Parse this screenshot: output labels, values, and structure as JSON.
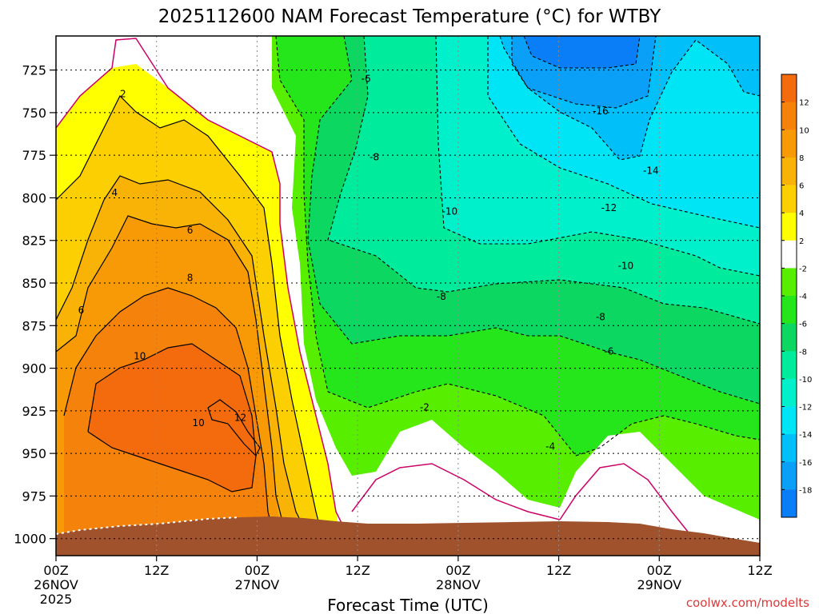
{
  "chart_data": {
    "type": "heatmap",
    "title": "2025112600 NAM Forecast Temperature (°C) for WTBY",
    "xlabel": "Forecast Time (UTC)",
    "ylabel": "",
    "x_ticks": [
      {
        "hour": 0,
        "line1": "00Z",
        "line2": "26NOV",
        "line3": "2025"
      },
      {
        "hour": 12,
        "line1": "12Z",
        "line2": "",
        "line3": ""
      },
      {
        "hour": 24,
        "line1": "00Z",
        "line2": "27NOV",
        "line3": ""
      },
      {
        "hour": 36,
        "line1": "12Z",
        "line2": "",
        "line3": ""
      },
      {
        "hour": 48,
        "line1": "00Z",
        "line2": "28NOV",
        "line3": ""
      },
      {
        "hour": 60,
        "line1": "12Z",
        "line2": "",
        "line3": ""
      },
      {
        "hour": 72,
        "line1": "00Z",
        "line2": "29NOV",
        "line3": ""
      },
      {
        "hour": 84,
        "line1": "12Z",
        "line2": "",
        "line3": ""
      }
    ],
    "y_ticks": [
      "725",
      "750",
      "775",
      "800",
      "825",
      "850",
      "875",
      "900",
      "925",
      "950",
      "975",
      "1000"
    ],
    "y_values": [
      725,
      750,
      775,
      800,
      825,
      850,
      875,
      900,
      925,
      950,
      975,
      1000
    ],
    "xlim_hours": [
      0,
      84
    ],
    "ylim_hpa": [
      705,
      1010
    ],
    "colorbar": {
      "ticks": [
        "12",
        "10",
        "8",
        "6",
        "4",
        "2",
        "-2",
        "-4",
        "-6",
        "-8",
        "-10",
        "-12",
        "-14",
        "-16",
        "-18"
      ],
      "colors": [
        "#f36b0c",
        "#f5820a",
        "#f79a05",
        "#f9b307",
        "#fccf03",
        "#ffff00",
        "#ffffff",
        "#58ee00",
        "#25e61b",
        "#0cd861",
        "#00ec9c",
        "#00f0cc",
        "#00e5f5",
        "#00bff9",
        "#0aa0f8",
        "#0a7ef6"
      ]
    },
    "contour_labels": [
      {
        "text": "2",
        "hour": 8,
        "hpa": 739
      },
      {
        "text": "4",
        "hour": 7,
        "hpa": 797
      },
      {
        "text": "6",
        "hour": 16,
        "hpa": 819
      },
      {
        "text": "6",
        "hour": 3,
        "hpa": 866
      },
      {
        "text": "8",
        "hour": 16,
        "hpa": 847
      },
      {
        "text": "10",
        "hour": 10,
        "hpa": 893
      },
      {
        "text": "10",
        "hour": 17,
        "hpa": 932
      },
      {
        "text": "12",
        "hour": 22,
        "hpa": 929
      },
      {
        "text": "-2",
        "hour": 44,
        "hpa": 923
      },
      {
        "text": "-4",
        "hour": 59,
        "hpa": 946
      },
      {
        "text": "-6",
        "hour": 37,
        "hpa": 730
      },
      {
        "text": "-6",
        "hour": 66,
        "hpa": 890
      },
      {
        "text": "-8",
        "hour": 38,
        "hpa": 776
      },
      {
        "text": "-8",
        "hour": 46,
        "hpa": 858
      },
      {
        "text": "-8",
        "hour": 65,
        "hpa": 870
      },
      {
        "text": "-10",
        "hour": 47,
        "hpa": 808
      },
      {
        "text": "-10",
        "hour": 68,
        "hpa": 840
      },
      {
        "text": "-12",
        "hour": 66,
        "hpa": 806
      },
      {
        "text": "-14",
        "hour": 71,
        "hpa": 784
      },
      {
        "text": "-16",
        "hour": 65,
        "hpa": 749
      }
    ],
    "credit": "coolwx.com/modelts",
    "surface_color": "#a0522d",
    "grid": true
  }
}
